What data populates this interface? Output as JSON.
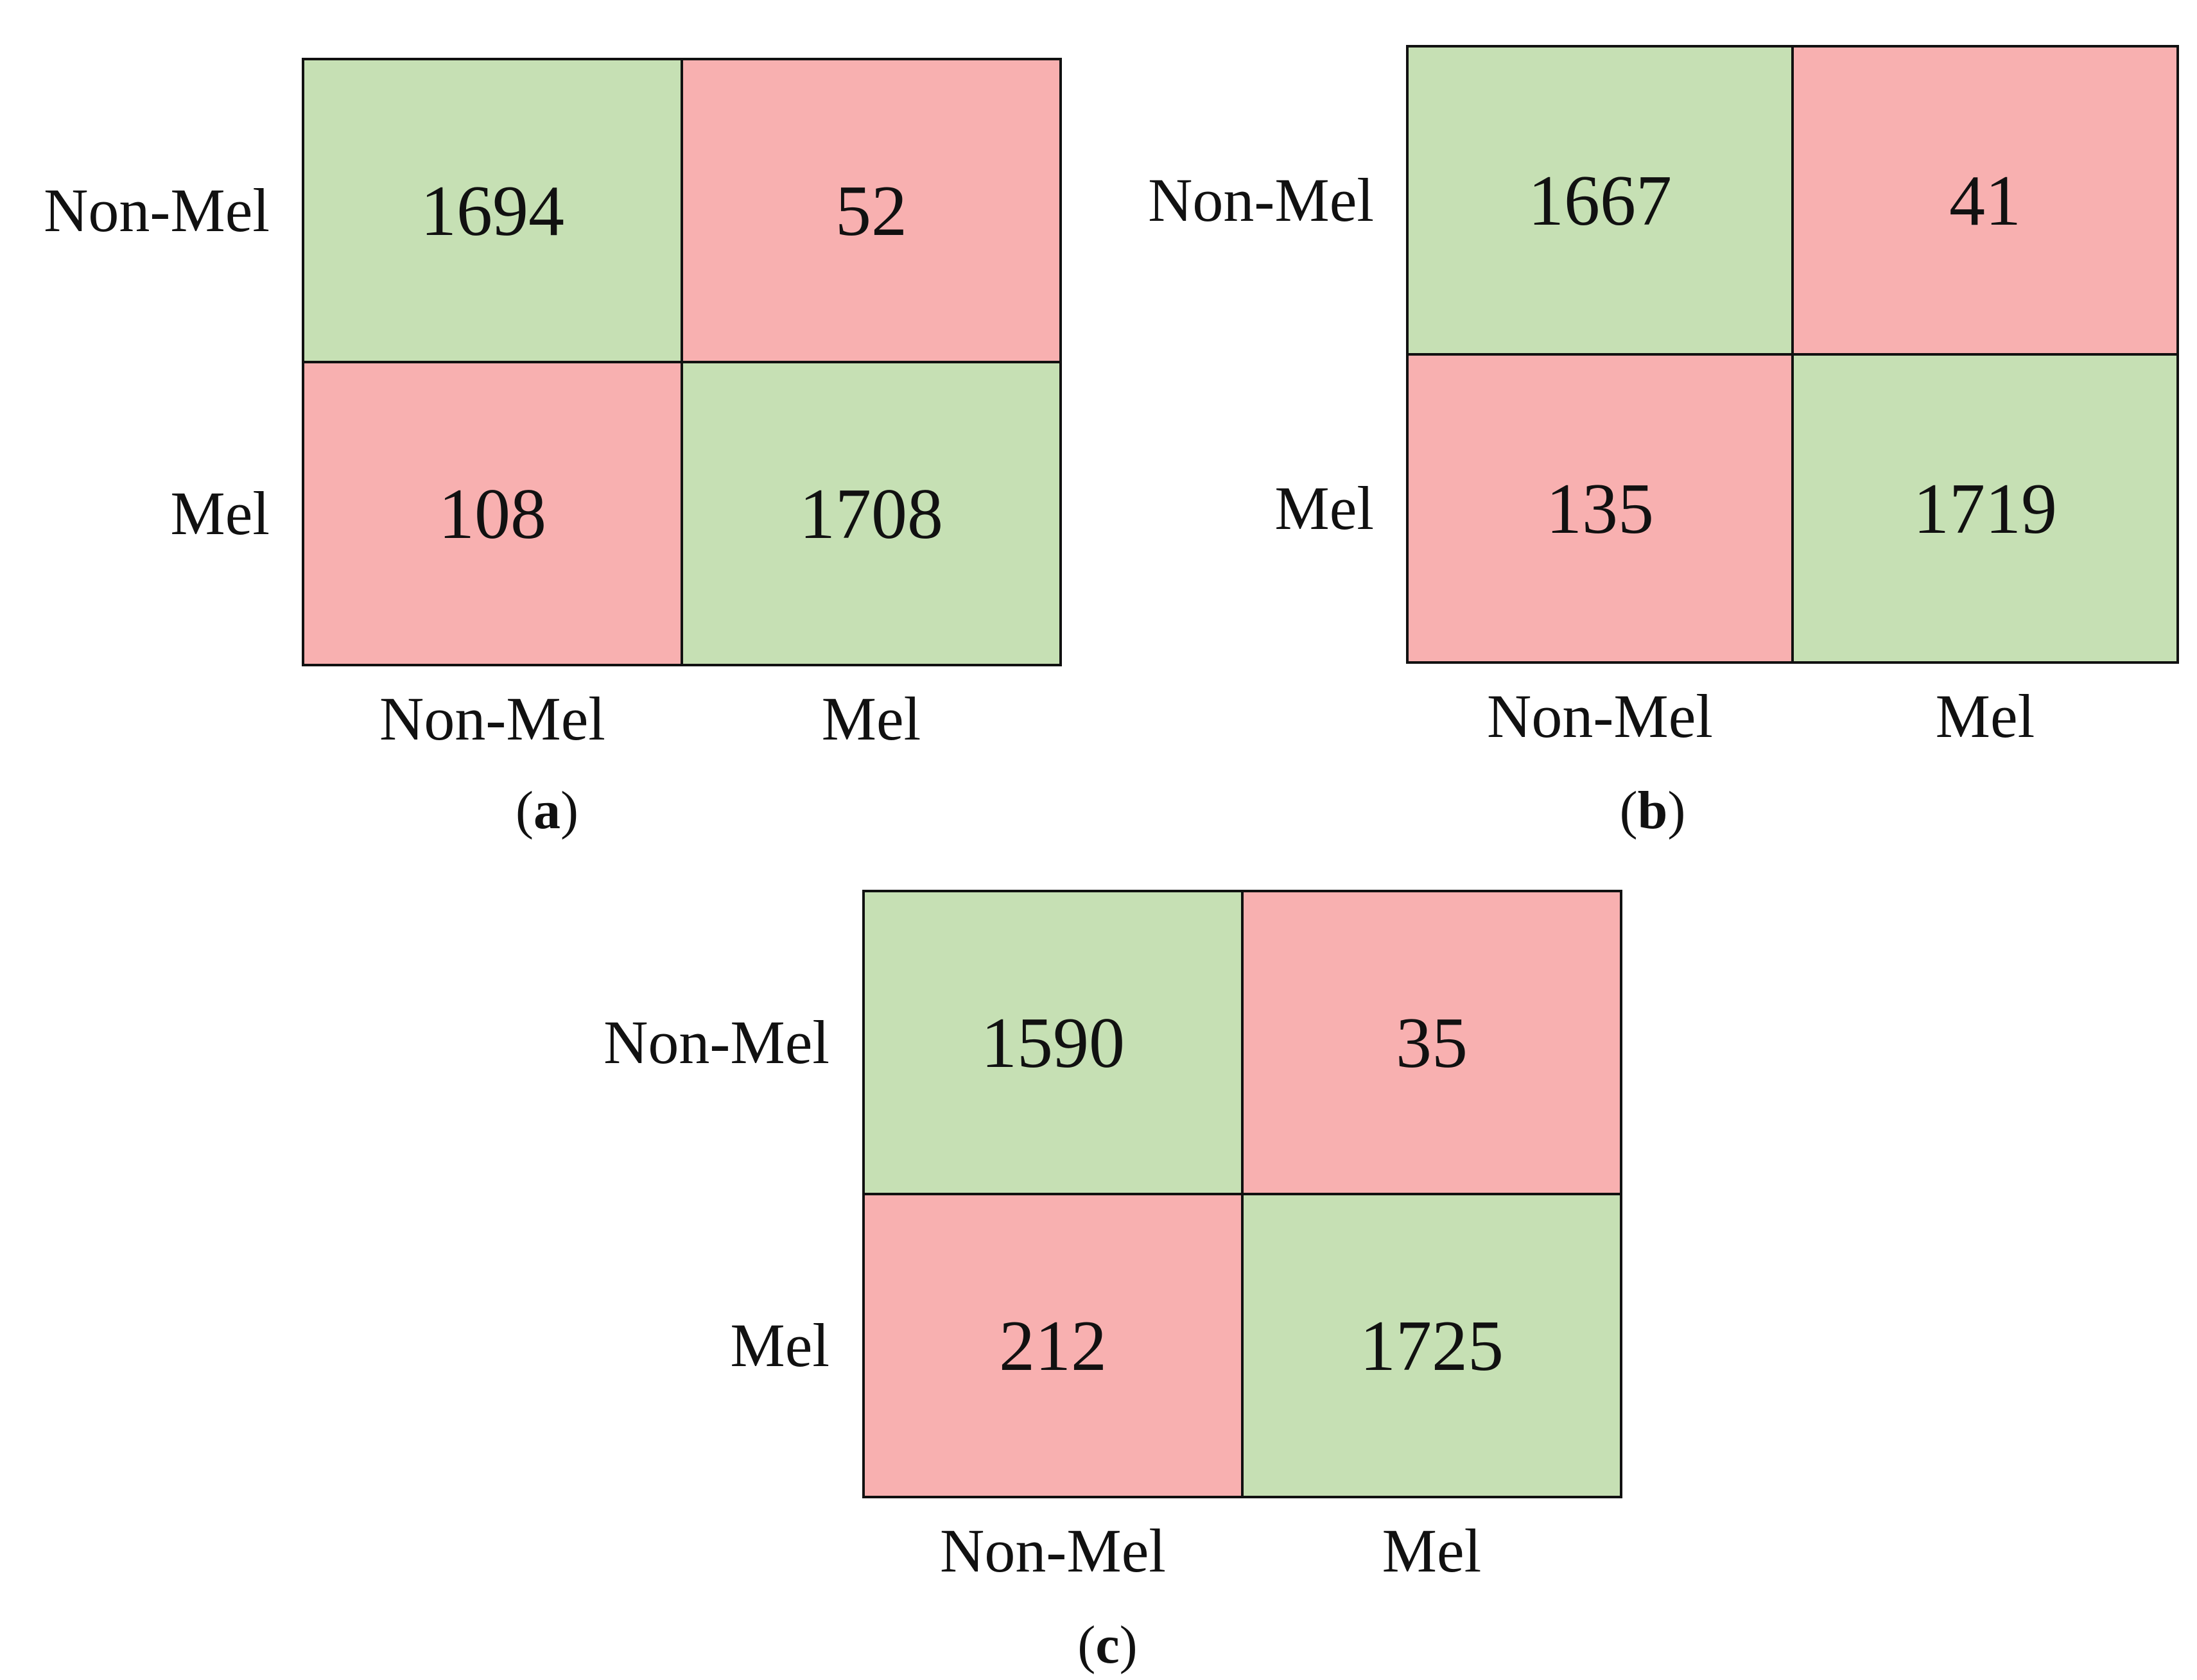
{
  "chart_data": [
    {
      "type": "heatmap",
      "caption": "a",
      "row_labels": [
        "Non-Mel",
        "Mel"
      ],
      "col_labels": [
        "Non-Mel",
        "Mel"
      ],
      "values": [
        [
          1694,
          52
        ],
        [
          108,
          1708
        ]
      ]
    },
    {
      "type": "heatmap",
      "caption": "b",
      "row_labels": [
        "Non-Mel",
        "Mel"
      ],
      "col_labels": [
        "Non-Mel",
        "Mel"
      ],
      "values": [
        [
          1667,
          41
        ],
        [
          135,
          1719
        ]
      ]
    },
    {
      "type": "heatmap",
      "caption": "c",
      "row_labels": [
        "Non-Mel",
        "Mel"
      ],
      "col_labels": [
        "Non-Mel",
        "Mel"
      ],
      "values": [
        [
          1590,
          35
        ],
        [
          212,
          1725
        ]
      ]
    }
  ],
  "colors": {
    "correct": "#c6e0b4",
    "incorrect": "#f8b0b0",
    "border": "#111111"
  }
}
